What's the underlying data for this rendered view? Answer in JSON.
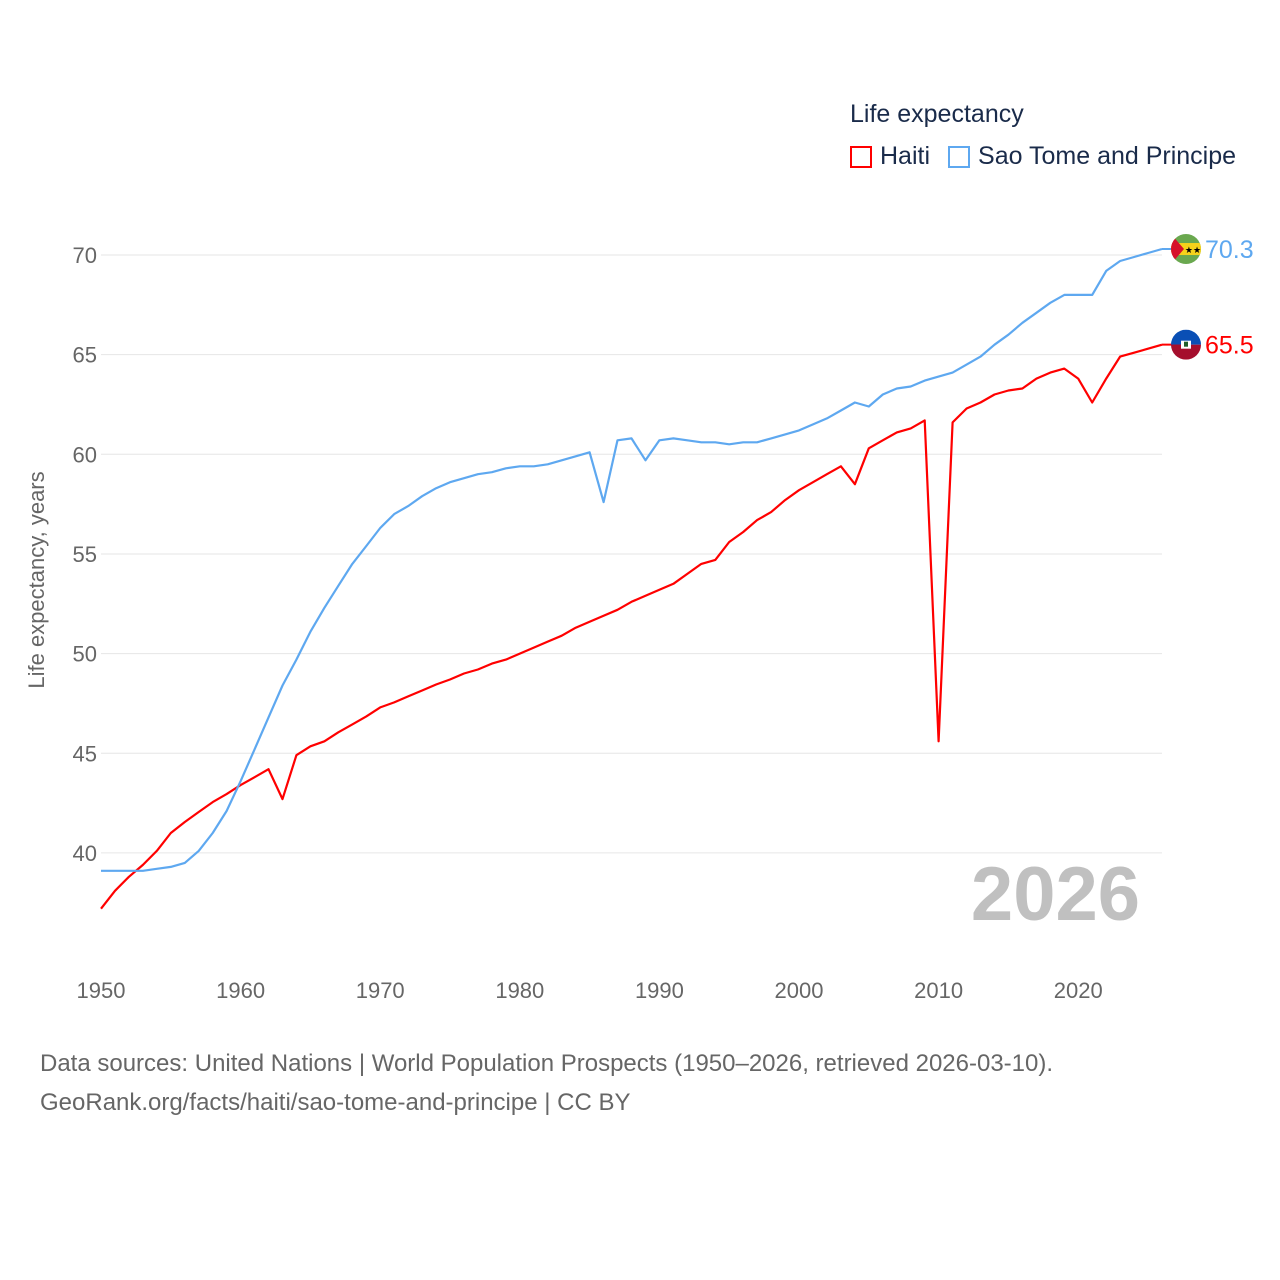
{
  "chart_data": {
    "type": "line",
    "title": "",
    "xlabel": "",
    "ylabel": "Life expectancy, years",
    "xlim": [
      1950,
      2026
    ],
    "ylim": [
      37,
      72
    ],
    "grid": true,
    "xticks": [
      1950,
      1960,
      1970,
      1980,
      1990,
      2000,
      2010,
      2020
    ],
    "yticks": [
      40,
      45,
      50,
      55,
      60,
      65,
      70
    ],
    "legend": {
      "title": "Life expectancy",
      "placement": "top-right"
    },
    "year_label": "2026",
    "series": [
      {
        "name": "Haiti",
        "color": "#ff0000",
        "end_label": "65.5",
        "flag": "haiti-flag",
        "values": [
          37.2,
          38.1,
          38.8,
          39.4,
          40.1,
          41.0,
          41.55,
          42.05,
          42.55,
          42.95,
          43.4,
          43.8,
          44.2,
          42.7,
          44.9,
          45.35,
          45.6,
          46.05,
          46.45,
          46.85,
          47.3,
          47.55,
          47.85,
          48.15,
          48.45,
          48.7,
          49.0,
          49.2,
          49.5,
          49.7,
          50.0,
          50.3,
          50.6,
          50.9,
          51.3,
          51.6,
          51.9,
          52.2,
          52.6,
          52.9,
          53.2,
          53.5,
          54.0,
          54.5,
          54.7,
          55.6,
          56.1,
          56.7,
          57.1,
          57.7,
          58.2,
          58.6,
          59.0,
          59.4,
          58.5,
          60.3,
          60.7,
          61.1,
          61.3,
          61.7,
          45.6,
          61.6,
          62.3,
          62.6,
          63.0,
          63.2,
          63.3,
          63.8,
          64.1,
          64.3,
          63.8,
          62.6,
          63.8,
          64.9,
          65.1,
          65.3,
          65.5
        ]
      },
      {
        "name": "Sao Tome and Principe",
        "color": "#5ea8f0",
        "end_label": "70.3",
        "flag": "sao-tome-flag",
        "values": [
          39.1,
          39.1,
          39.1,
          39.1,
          39.2,
          39.3,
          39.5,
          40.1,
          41.0,
          42.1,
          43.6,
          45.2,
          46.8,
          48.4,
          49.7,
          51.1,
          52.3,
          53.4,
          54.5,
          55.4,
          56.3,
          57.0,
          57.4,
          57.9,
          58.3,
          58.6,
          58.8,
          59.0,
          59.1,
          59.3,
          59.4,
          59.4,
          59.5,
          59.7,
          59.9,
          60.1,
          57.6,
          60.7,
          60.8,
          59.7,
          60.7,
          60.8,
          60.7,
          60.6,
          60.6,
          60.5,
          60.6,
          60.6,
          60.8,
          61.0,
          61.2,
          61.5,
          61.8,
          62.2,
          62.6,
          62.4,
          63.0,
          63.3,
          63.4,
          63.7,
          63.9,
          64.1,
          64.5,
          64.9,
          65.5,
          66.0,
          66.6,
          67.1,
          67.6,
          68.0,
          68.0,
          68.0,
          69.2,
          69.7,
          69.9,
          70.1,
          70.3
        ]
      }
    ]
  },
  "footer": {
    "line1": "Data sources: United Nations | World Population Prospects (1950–2026, retrieved 2026-03-10).",
    "line2": "GeoRank.org/facts/haiti/sao-tome-and-principe | CC BY"
  }
}
